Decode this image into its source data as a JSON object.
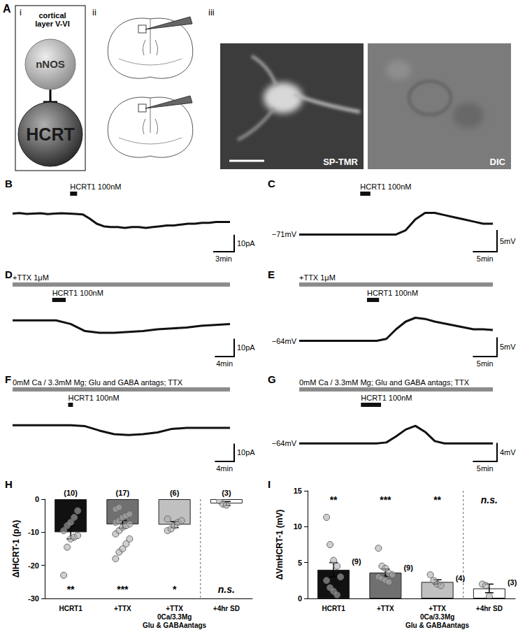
{
  "schematic": {
    "title": "A",
    "parts": [
      "i",
      "ii",
      "iii"
    ],
    "box_label": "cortical\nlayer V-VI",
    "cells": [
      "nNOS",
      "HCRT"
    ],
    "images": [
      "SP-TMR",
      "DIC"
    ]
  },
  "chart_data": [
    {
      "type": "line",
      "title": "B",
      "color": "#111111",
      "tick_labels": false,
      "x": [
        0,
        1,
        2,
        3,
        4,
        5,
        6,
        7,
        8,
        9,
        10,
        11,
        12,
        13,
        14,
        15,
        16,
        17,
        18,
        19,
        20,
        21,
        22,
        23,
        24,
        25,
        26,
        27,
        28,
        29,
        30,
        31
      ],
      "values": [
        0,
        0.3,
        -0.2,
        0,
        0.2,
        -0.3,
        0,
        0.2,
        0,
        -0.2,
        -0.5,
        -3,
        -6,
        -7.5,
        -8,
        -8,
        -8.5,
        -8,
        -8,
        -8.5,
        -8,
        -7.5,
        -7,
        -7,
        -6.5,
        -6,
        -6,
        -5.5,
        -5.5,
        -5,
        -5,
        -5
      ],
      "xlim": [
        0,
        31
      ],
      "ylim": [
        -20,
        8
      ],
      "drug_bars": [
        {
          "label": "HCRT1 100nM",
          "start": 8.2,
          "end": 9.2,
          "color": "#111111"
        }
      ],
      "scale_bar": {
        "x": 3,
        "x_label": "3min",
        "y": 10,
        "y_label": "10pA"
      }
    },
    {
      "type": "line",
      "title": "C",
      "color": "#111111",
      "tick_labels": false,
      "x": [
        0,
        2,
        4,
        6,
        8,
        10,
        12,
        14,
        16,
        18,
        20,
        22,
        24,
        26,
        28,
        30,
        32,
        34,
        36,
        38,
        40
      ],
      "values": [
        -71,
        -71,
        -71,
        -71,
        -71,
        -71,
        -71,
        -71,
        -71,
        -71,
        -71,
        -70,
        -67.5,
        -66,
        -66,
        -66.5,
        -67,
        -67.5,
        -68,
        -68.5,
        -68.5
      ],
      "xlim": [
        0,
        40
      ],
      "ylim": [
        -74,
        -63
      ],
      "baseline": {
        "value": -71,
        "label": "−71mV"
      },
      "drug_bars": [
        {
          "label": "HCRT1 100nM",
          "start": 12.6,
          "end": 14.7,
          "color": "#111111"
        }
      ],
      "scale_bar": {
        "x": 5,
        "x_label": "5min",
        "y": 5,
        "y_label": "5mV"
      }
    },
    {
      "type": "line",
      "title": "D",
      "color": "#111111",
      "tick_labels": false,
      "x": [
        0,
        3,
        6,
        9,
        12,
        15,
        18,
        21,
        24,
        27,
        30,
        33,
        36,
        39,
        42,
        45
      ],
      "values": [
        0,
        0,
        0,
        0,
        -2,
        -6,
        -7,
        -7,
        -6.5,
        -6,
        -5,
        -4.5,
        -4,
        -3,
        -2.5,
        -2
      ],
      "xlim": [
        0,
        45
      ],
      "ylim": [
        -18,
        8
      ],
      "drug_bars": [
        {
          "label": "+TTX 1μM",
          "start": 0,
          "end": 45,
          "color": "#8c8c8c"
        },
        {
          "label": "HCRT1 100nM",
          "start": 8.2,
          "end": 11,
          "color": "#111111"
        }
      ],
      "scale_bar": {
        "x": 4,
        "x_label": "4min",
        "y": 10,
        "y_label": "10pA"
      }
    },
    {
      "type": "line",
      "title": "E",
      "color": "#111111",
      "tick_labels": false,
      "x": [
        0,
        2,
        4,
        6,
        8,
        10,
        12,
        14,
        16,
        18,
        20,
        22,
        24,
        26,
        28,
        30,
        32,
        34,
        36,
        38,
        40
      ],
      "values": [
        -64,
        -64,
        -64,
        -64,
        -64,
        -64,
        -64,
        -64,
        -64,
        -63.5,
        -61,
        -59,
        -58,
        -58.3,
        -59,
        -59.5,
        -60,
        -60.5,
        -61,
        -61,
        -61.2
      ],
      "xlim": [
        0,
        40
      ],
      "ylim": [
        -67,
        -55
      ],
      "baseline": {
        "value": -64,
        "label": "−64mV"
      },
      "drug_bars": [
        {
          "label": "+TTX 1μM",
          "start": 0,
          "end": 40,
          "color": "#8c8c8c"
        },
        {
          "label": "HCRT1 100nM",
          "start": 14,
          "end": 16.5,
          "color": "#111111"
        }
      ],
      "scale_bar": {
        "x": 5,
        "x_label": "5min",
        "y": 5,
        "y_label": "5mV"
      }
    },
    {
      "type": "line",
      "title": "F",
      "color": "#111111",
      "tick_labels": false,
      "x": [
        0,
        3,
        6,
        9,
        12,
        15,
        18,
        21,
        24,
        27,
        30,
        33,
        36,
        39,
        42,
        45
      ],
      "values": [
        0,
        0,
        0,
        0,
        0,
        -0.5,
        -3,
        -5,
        -5.5,
        -5,
        -4,
        -2,
        -1.5,
        -1.5,
        -1.5,
        -1.5
      ],
      "xlim": [
        0,
        45
      ],
      "ylim": [
        -18,
        8
      ],
      "drug_bars": [
        {
          "label": "0mM Ca / 3.3mM Mg; Glu and GABA antags; TTX",
          "start": 0,
          "end": 45,
          "color": "#8c8c8c"
        },
        {
          "label": "HCRT1 100nM",
          "start": 11.5,
          "end": 12.5,
          "color": "#111111"
        }
      ],
      "scale_bar": {
        "x": 4,
        "x_label": "4min",
        "y": 10,
        "y_label": "10pA"
      }
    },
    {
      "type": "line",
      "title": "G",
      "color": "#111111",
      "tick_labels": false,
      "x": [
        0,
        2,
        4,
        6,
        8,
        10,
        12,
        14,
        16,
        18,
        20,
        22,
        24,
        26,
        28,
        30,
        32,
        34,
        36,
        38,
        40
      ],
      "values": [
        -64,
        -64,
        -64,
        -64,
        -64,
        -64,
        -64,
        -64,
        -64,
        -63.8,
        -62.5,
        -61,
        -60.2,
        -61.5,
        -63.5,
        -64,
        -64,
        -64,
        -64,
        -64,
        -64
      ],
      "xlim": [
        0,
        40
      ],
      "ylim": [
        -67,
        -57
      ],
      "baseline": {
        "value": -64,
        "label": "−64mV"
      },
      "drug_bars": [
        {
          "label": "0mM Ca / 3.3mM Mg; Glu and GABA antags; TTX",
          "start": 0,
          "end": 40,
          "color": "#8c8c8c"
        },
        {
          "label": "HCRT1 100nM",
          "start": 12.75,
          "end": 16.9,
          "color": "#111111"
        }
      ],
      "scale_bar": {
        "x": 5,
        "x_label": "5min",
        "y": 4,
        "y_label": "4mV"
      }
    },
    {
      "type": "bar",
      "title": "H",
      "y_label": "ΔIHCRT-1 (pA)",
      "categories": [
        "HCRT1",
        "+TTX",
        "+TTX\n0Ca/3.3Mg\nGlu & GABAantags",
        "+4hr SD"
      ],
      "values": [
        -10,
        -7.6,
        -7.7,
        -1.3
      ],
      "errors": [
        2.0,
        1.2,
        0.9,
        0.6
      ],
      "colors": [
        "#111111",
        "#707070",
        "#c0c0c0",
        "#ffffff"
      ],
      "points": [
        [
          -23,
          -14.5,
          -12,
          -11.5,
          -11,
          -9.5,
          -8,
          -7,
          -5.5,
          -3.5
        ],
        [
          -18,
          -16,
          -15,
          -13.5,
          -12,
          -10.5,
          -9.5,
          -8.5,
          -8,
          -7.5,
          -7,
          -6.5,
          -5.5,
          -5,
          -4.5,
          -3,
          -2.5
        ],
        [
          -9.5,
          -9,
          -8,
          -7,
          -6.5,
          -6
        ],
        [
          -0.5,
          -1.5,
          -1.8
        ]
      ],
      "n_labels": [
        "(10)",
        "(17)",
        "(6)",
        "(3)"
      ],
      "significance": [
        "**",
        "***",
        "*",
        "n.s."
      ],
      "ylim": [
        -30,
        0
      ],
      "yticks": [
        -30,
        -20,
        -10,
        0
      ]
    },
    {
      "type": "bar",
      "title": "I",
      "y_label": "ΔVmHCRT-1 (mV)",
      "categories": [
        "HCRT1",
        "+TTX",
        "+TTX\n0Ca/3.3Mg\nGlu & GABAantags",
        "+4hr SD"
      ],
      "values": [
        4.0,
        3.6,
        2.3,
        1.4
      ],
      "errors": [
        1.0,
        0.5,
        0.3,
        0.6
      ],
      "colors": [
        "#111111",
        "#707070",
        "#c0c0c0",
        "#ffffff"
      ],
      "points": [
        [
          11.3,
          7.5,
          5.3,
          4.5,
          3.0,
          2.5,
          1.5,
          1.0,
          0.5
        ],
        [
          7.0,
          4.5,
          4.2,
          3.5,
          3.3,
          3.0,
          2.8,
          2.5,
          2.3
        ],
        [
          3.3,
          2.5,
          2.0,
          1.8
        ],
        [
          2.0,
          1.8,
          0.3
        ]
      ],
      "n_labels": [
        "(9)",
        "(9)",
        "(4)",
        "(3)"
      ],
      "significance": [
        "**",
        "***",
        "**",
        "n.s."
      ],
      "ylim": [
        0,
        15
      ],
      "yticks": [
        0,
        5,
        10,
        15
      ]
    }
  ]
}
